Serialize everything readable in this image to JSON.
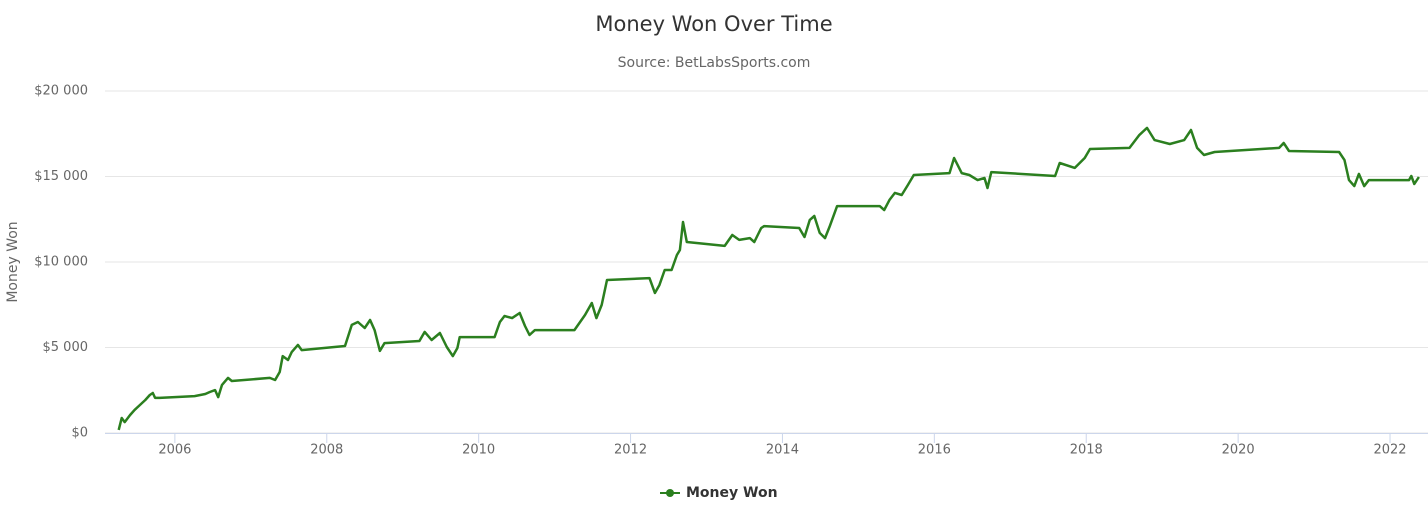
{
  "chart_data": {
    "type": "line",
    "title": "Money Won Over Time",
    "subtitle": "Source: BetLabsSports.com",
    "y_label": "Money Won",
    "x": [
      2005.26,
      2005.3,
      2005.34,
      2005.41,
      2005.47,
      2005.54,
      2005.61,
      2005.67,
      2005.71,
      2005.74,
      2005.8,
      2006.26,
      2006.4,
      2006.46,
      2006.53,
      2006.57,
      2006.62,
      2006.7,
      2006.75,
      2007.25,
      2007.32,
      2007.38,
      2007.42,
      2007.49,
      2007.54,
      2007.62,
      2007.67,
      2008.24,
      2008.33,
      2008.41,
      2008.5,
      2008.57,
      2008.63,
      2008.7,
      2008.76,
      2009.22,
      2009.29,
      2009.38,
      2009.49,
      2009.58,
      2009.66,
      2009.72,
      2009.75,
      2010.21,
      2010.28,
      2010.34,
      2010.44,
      2010.54,
      2010.61,
      2010.67,
      2010.74,
      2011.26,
      2011.4,
      2011.49,
      2011.55,
      2011.62,
      2011.69,
      2012.25,
      2012.32,
      2012.38,
      2012.45,
      2012.54,
      2012.61,
      2012.65,
      2012.69,
      2012.74,
      2013.24,
      2013.34,
      2013.43,
      2013.57,
      2013.63,
      2013.72,
      2013.76,
      2014.22,
      2014.29,
      2014.36,
      2014.42,
      2014.49,
      2014.56,
      2014.62,
      2014.72,
      2015.28,
      2015.34,
      2015.41,
      2015.48,
      2015.57,
      2015.65,
      2015.73,
      2016.2,
      2016.26,
      2016.36,
      2016.46,
      2016.57,
      2016.66,
      2016.7,
      2016.75,
      2017.59,
      2017.65,
      2017.85,
      2017.98,
      2018.05,
      2018.57,
      2018.7,
      2018.8,
      2018.9,
      2019.1,
      2019.29,
      2019.38,
      2019.46,
      2019.55,
      2019.69,
      2020.54,
      2020.6,
      2020.67,
      2021.33,
      2021.4,
      2021.46,
      2021.53,
      2021.59,
      2021.66,
      2021.72,
      2022.25,
      2022.28,
      2022.32,
      2022.38
    ],
    "series": [
      {
        "name": "Money Won",
        "color": "#2b7f1f",
        "values": [
          180,
          880,
          640,
          1050,
          1350,
          1640,
          1930,
          2220,
          2340,
          2050,
          2050,
          2160,
          2280,
          2400,
          2510,
          2100,
          2810,
          3220,
          3040,
          3220,
          3100,
          3570,
          4500,
          4270,
          4740,
          5150,
          4850,
          5090,
          6320,
          6490,
          6140,
          6610,
          6020,
          4800,
          5260,
          5380,
          5910,
          5440,
          5850,
          5030,
          4500,
          4970,
          5610,
          5610,
          6490,
          6840,
          6720,
          7020,
          6260,
          5730,
          6020,
          6020,
          6900,
          7600,
          6720,
          7490,
          8950,
          9060,
          8190,
          8650,
          9530,
          9530,
          10410,
          10700,
          12340,
          11170,
          10940,
          11580,
          11290,
          11400,
          11170,
          11990,
          12100,
          11990,
          11460,
          12460,
          12690,
          11700,
          11400,
          12050,
          13270,
          13270,
          13040,
          13630,
          14040,
          13920,
          14500,
          15090,
          15200,
          16080,
          15200,
          15090,
          14790,
          14910,
          14330,
          15260,
          15030,
          15790,
          15500,
          16080,
          16610,
          16670,
          17430,
          17840,
          17130,
          16900,
          17130,
          17720,
          16670,
          16260,
          16430,
          16670,
          16960,
          16490,
          16430,
          15960,
          14790,
          14440,
          15150,
          14440,
          14790,
          14790,
          15030,
          14560,
          14970
        ]
      }
    ],
    "xlim": [
      2005.08,
      2022.5
    ],
    "xticks": [
      2006,
      2008,
      2010,
      2012,
      2014,
      2016,
      2018,
      2020,
      2022
    ],
    "ylim": [
      0,
      20000
    ],
    "yticks": [
      {
        "value": 0,
        "label": "$0"
      },
      {
        "value": 5000,
        "label": "$5 000"
      },
      {
        "value": 10000,
        "label": "$10 000"
      },
      {
        "value": 15000,
        "label": "$15 000"
      },
      {
        "value": 20000,
        "label": "$20 000"
      }
    ],
    "grid": true,
    "legend": "bottom"
  }
}
